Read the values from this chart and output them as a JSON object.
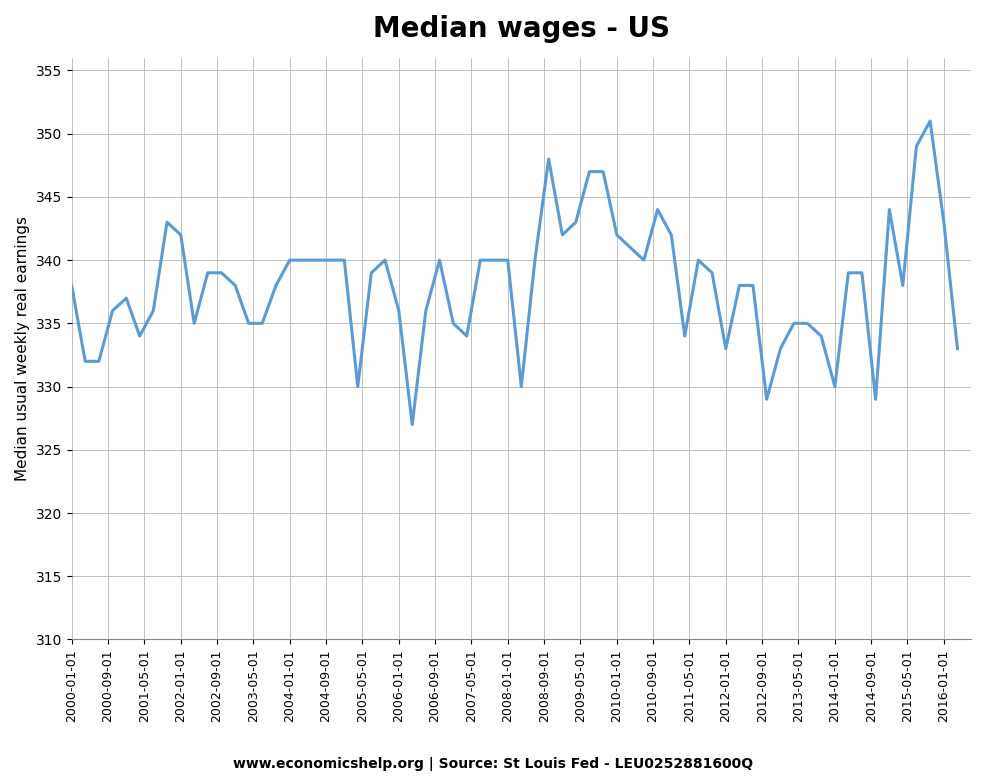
{
  "title": "Median wages - US",
  "ylabel": "Median usual weekly real earnings",
  "source_text": "www.economicshelp.org | Source: St Louis Fed - LEU0252881600Q",
  "line_color": "#5b9bd5",
  "line_width": 2.2,
  "background_color": "#ffffff",
  "ylim": [
    310,
    356
  ],
  "yticks": [
    310,
    315,
    320,
    325,
    330,
    335,
    340,
    345,
    350,
    355
  ],
  "dates": [
    "2000-01-01",
    "2000-04-01",
    "2000-07-01",
    "2000-10-01",
    "2001-01-01",
    "2001-04-01",
    "2001-07-01",
    "2001-10-01",
    "2002-01-01",
    "2002-04-01",
    "2002-07-01",
    "2002-10-01",
    "2003-01-01",
    "2003-04-01",
    "2003-07-01",
    "2003-10-01",
    "2004-01-01",
    "2004-04-01",
    "2004-07-01",
    "2004-10-01",
    "2005-01-01",
    "2005-04-01",
    "2005-07-01",
    "2005-10-01",
    "2006-01-01",
    "2006-04-01",
    "2006-07-01",
    "2006-10-01",
    "2007-01-01",
    "2007-04-01",
    "2007-07-01",
    "2007-10-01",
    "2008-01-01",
    "2008-04-01",
    "2008-07-01",
    "2008-10-01",
    "2009-01-01",
    "2009-04-01",
    "2009-07-01",
    "2009-10-01",
    "2010-01-01",
    "2010-04-01",
    "2010-07-01",
    "2010-10-01",
    "2011-01-01",
    "2011-04-01",
    "2011-07-01",
    "2011-10-01",
    "2012-01-01",
    "2012-04-01",
    "2012-07-01",
    "2012-10-01",
    "2013-01-01",
    "2013-04-01",
    "2013-07-01",
    "2013-10-01",
    "2014-01-01",
    "2014-04-01",
    "2014-07-01",
    "2014-10-01",
    "2015-01-01",
    "2015-04-01",
    "2015-07-01",
    "2015-10-01",
    "2016-01-01",
    "2016-04-01"
  ],
  "values": [
    338,
    332,
    332,
    336,
    337,
    334,
    336,
    343,
    342,
    335,
    339,
    339,
    338,
    335,
    335,
    338,
    340,
    340,
    340,
    340,
    340,
    330,
    339,
    340,
    336,
    327,
    336,
    340,
    335,
    334,
    340,
    340,
    340,
    330,
    340,
    348,
    342,
    343,
    347,
    347,
    342,
    341,
    340,
    344,
    342,
    334,
    340,
    339,
    333,
    338,
    338,
    329,
    333,
    335,
    335,
    334,
    330,
    339,
    339,
    329,
    344,
    338,
    349,
    351,
    343,
    333
  ],
  "xtick_dates": [
    "2000-01-01",
    "2000-09-01",
    "2001-05-01",
    "2002-01-01",
    "2002-09-01",
    "2003-05-01",
    "2004-01-01",
    "2004-09-01",
    "2005-05-01",
    "2006-01-01",
    "2006-09-01",
    "2007-05-01",
    "2008-01-01",
    "2008-09-01",
    "2009-05-01",
    "2010-01-01",
    "2010-09-01",
    "2011-05-01",
    "2012-01-01",
    "2012-09-01",
    "2013-05-01",
    "2014-01-01",
    "2014-09-01",
    "2015-05-01",
    "2016-01-01"
  ]
}
